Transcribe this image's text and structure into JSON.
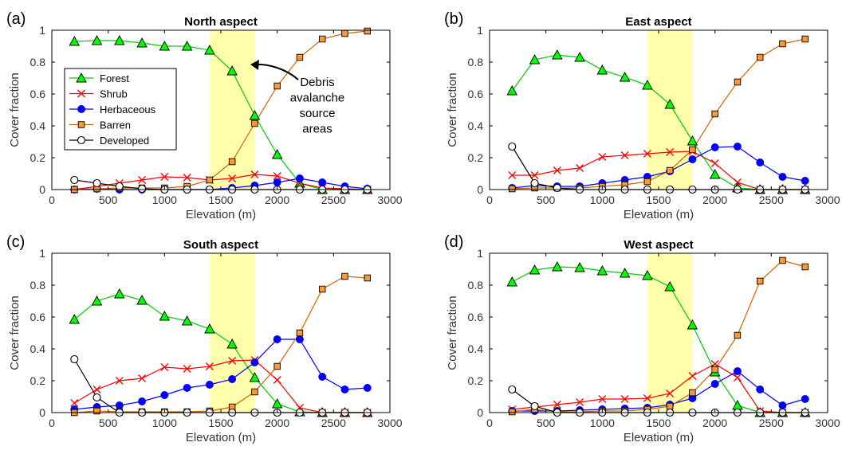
{
  "chart_data": [
    {
      "type": "line",
      "panel_label": "(a)",
      "title": "North aspect",
      "xlabel": "Elevation (m)",
      "ylabel": "Cover fraction",
      "xlim": [
        0,
        3000
      ],
      "ylim": [
        0,
        1
      ],
      "xticks": [
        "0",
        "500",
        "1000",
        "1500",
        "2000",
        "2500",
        "3000"
      ],
      "yticks": [
        "0",
        "0.2",
        "0.4",
        "0.6",
        "0.8",
        "1"
      ],
      "grid": false,
      "highlight_band": [
        1400,
        1800
      ],
      "x": [
        200,
        400,
        600,
        800,
        1000,
        1200,
        1400,
        1600,
        1800,
        2000,
        2200,
        2400,
        2600,
        2800
      ],
      "series": [
        {
          "name": "Forest",
          "values": [
            0.93,
            0.935,
            0.935,
            0.92,
            0.9,
            0.9,
            0.875,
            0.745,
            0.465,
            0.22,
            0.04,
            0.0,
            0.0,
            0.0
          ]
        },
        {
          "name": "Shrub",
          "values": [
            0.0,
            0.02,
            0.04,
            0.06,
            0.08,
            0.075,
            0.06,
            0.07,
            0.095,
            0.085,
            0.04,
            0.01,
            0.005,
            0.0
          ]
        },
        {
          "name": "Herbaceous",
          "values": [
            0.0,
            0.005,
            0.0,
            0.0,
            0.0,
            0.0,
            0.0,
            0.01,
            0.025,
            0.045,
            0.07,
            0.045,
            0.02,
            0.005
          ]
        },
        {
          "name": "Barren",
          "values": [
            0.0,
            0.005,
            0.01,
            0.01,
            0.01,
            0.02,
            0.06,
            0.175,
            0.415,
            0.65,
            0.83,
            0.945,
            0.98,
            0.995
          ]
        },
        {
          "name": "Developed",
          "values": [
            0.06,
            0.04,
            0.02,
            0.005,
            0.0,
            0.0,
            0.0,
            0.0,
            0.0,
            0.0,
            0.0,
            0.0,
            0.0,
            0.0
          ]
        }
      ],
      "legend": "upper-left",
      "annotation": [
        "Debris",
        "avalanche",
        "source",
        "areas"
      ]
    },
    {
      "type": "line",
      "panel_label": "(b)",
      "title": "East aspect",
      "xlabel": "Elevation (m)",
      "ylabel": "Cover fraction",
      "xlim": [
        0,
        3000
      ],
      "ylim": [
        0,
        1
      ],
      "xticks": [
        "0",
        "500",
        "1000",
        "1500",
        "2000",
        "2500",
        "3000"
      ],
      "yticks": [
        "0",
        "0.2",
        "0.4",
        "0.6",
        "0.8",
        "1"
      ],
      "grid": false,
      "highlight_band": [
        1400,
        1800
      ],
      "x": [
        200,
        400,
        600,
        800,
        1000,
        1200,
        1400,
        1600,
        1800,
        2000,
        2200,
        2400,
        2600,
        2800
      ],
      "series": [
        {
          "name": "Forest",
          "values": [
            0.62,
            0.815,
            0.845,
            0.83,
            0.75,
            0.705,
            0.655,
            0.535,
            0.305,
            0.095,
            0.01,
            0.0,
            0.0,
            0.0
          ]
        },
        {
          "name": "Shrub",
          "values": [
            0.09,
            0.09,
            0.12,
            0.135,
            0.205,
            0.215,
            0.225,
            0.235,
            0.24,
            0.165,
            0.045,
            0.0,
            0.0,
            0.0
          ]
        },
        {
          "name": "Herbaceous",
          "values": [
            0.01,
            0.025,
            0.02,
            0.02,
            0.04,
            0.06,
            0.08,
            0.115,
            0.19,
            0.265,
            0.27,
            0.17,
            0.08,
            0.055
          ]
        },
        {
          "name": "Barren",
          "values": [
            0.005,
            0.01,
            0.01,
            0.01,
            0.02,
            0.03,
            0.05,
            0.12,
            0.25,
            0.475,
            0.675,
            0.83,
            0.915,
            0.945
          ]
        },
        {
          "name": "Developed",
          "values": [
            0.27,
            0.04,
            0.01,
            0.0,
            0.0,
            0.0,
            0.0,
            0.0,
            0.0,
            0.0,
            0.0,
            0.0,
            0.0,
            0.0
          ]
        }
      ]
    },
    {
      "type": "line",
      "panel_label": "(c)",
      "title": "South aspect",
      "xlabel": "Elevation (m)",
      "ylabel": "Cover fraction",
      "xlim": [
        0,
        3000
      ],
      "ylim": [
        0,
        1
      ],
      "xticks": [
        "0",
        "500",
        "1000",
        "1500",
        "2000",
        "2500",
        "3000"
      ],
      "yticks": [
        "0",
        "0.2",
        "0.4",
        "0.6",
        "0.8",
        "1"
      ],
      "grid": false,
      "highlight_band": [
        1400,
        1800
      ],
      "x": [
        200,
        400,
        600,
        800,
        1000,
        1200,
        1400,
        1600,
        1800,
        2000,
        2200,
        2400,
        2600,
        2800
      ],
      "series": [
        {
          "name": "Forest",
          "values": [
            0.585,
            0.7,
            0.745,
            0.705,
            0.605,
            0.575,
            0.525,
            0.43,
            0.22,
            0.055,
            0.005,
            0.0,
            0.0,
            0.0
          ]
        },
        {
          "name": "Shrub",
          "values": [
            0.06,
            0.145,
            0.2,
            0.215,
            0.285,
            0.275,
            0.29,
            0.325,
            0.33,
            0.205,
            0.03,
            0.0,
            0.0,
            0.0
          ]
        },
        {
          "name": "Herbaceous",
          "values": [
            0.02,
            0.035,
            0.045,
            0.07,
            0.11,
            0.155,
            0.175,
            0.21,
            0.315,
            0.46,
            0.46,
            0.225,
            0.145,
            0.155
          ]
        },
        {
          "name": "Barren",
          "values": [
            0.0,
            0.01,
            0.005,
            0.005,
            0.005,
            0.005,
            0.01,
            0.035,
            0.13,
            0.29,
            0.5,
            0.775,
            0.855,
            0.845
          ]
        },
        {
          "name": "Developed",
          "values": [
            0.335,
            0.095,
            0.0,
            0.0,
            0.0,
            0.0,
            0.0,
            0.0,
            0.0,
            0.0,
            0.0,
            0.0,
            0.0,
            0.0
          ]
        }
      ]
    },
    {
      "type": "line",
      "panel_label": "(d)",
      "title": "West aspect",
      "xlabel": "Elevation (m)",
      "ylabel": "Cover fraction",
      "xlim": [
        0,
        3000
      ],
      "ylim": [
        0,
        1
      ],
      "xticks": [
        "0",
        "500",
        "1000",
        "1500",
        "2000",
        "2500",
        "3000"
      ],
      "yticks": [
        "0",
        "0.2",
        "0.4",
        "0.6",
        "0.8",
        "1"
      ],
      "grid": false,
      "highlight_band": [
        1400,
        1800
      ],
      "x": [
        200,
        400,
        600,
        800,
        1000,
        1200,
        1400,
        1600,
        1800,
        2000,
        2200,
        2400,
        2600,
        2800
      ],
      "series": [
        {
          "name": "Forest",
          "values": [
            0.82,
            0.895,
            0.915,
            0.91,
            0.89,
            0.875,
            0.86,
            0.79,
            0.55,
            0.255,
            0.045,
            0.0,
            0.0,
            0.0
          ]
        },
        {
          "name": "Shrub",
          "values": [
            0.02,
            0.035,
            0.05,
            0.065,
            0.085,
            0.085,
            0.09,
            0.12,
            0.23,
            0.305,
            0.22,
            0.01,
            0.0,
            0.0
          ]
        },
        {
          "name": "Herbaceous",
          "values": [
            0.01,
            0.01,
            0.01,
            0.015,
            0.02,
            0.025,
            0.03,
            0.05,
            0.09,
            0.18,
            0.26,
            0.145,
            0.045,
            0.085
          ]
        },
        {
          "name": "Barren",
          "values": [
            0.005,
            0.02,
            0.005,
            0.005,
            0.01,
            0.01,
            0.02,
            0.04,
            0.125,
            0.27,
            0.485,
            0.825,
            0.955,
            0.915
          ]
        },
        {
          "name": "Developed",
          "values": [
            0.145,
            0.04,
            0.0,
            0.0,
            0.0,
            0.0,
            0.0,
            0.0,
            0.0,
            0.0,
            0.0,
            0.0,
            0.0,
            0.0
          ]
        }
      ]
    }
  ],
  "styles": {
    "band_color": "#ffff9e",
    "series_colors": {
      "Forest": "#00cc00",
      "Shrub": "#ff0000",
      "Herbaceous": "#0000ff",
      "Barren": "#cc6600",
      "Developed": "#000000"
    },
    "marker_fills": {
      "Forest": "#00ff00",
      "Shrub": "none",
      "Herbaceous": "#0000ff",
      "Barren": "#ff9933",
      "Developed": "#ffffff"
    },
    "markers": {
      "Forest": "triangle",
      "Shrub": "x",
      "Herbaceous": "circle",
      "Barren": "square",
      "Developed": "open-circle"
    }
  }
}
